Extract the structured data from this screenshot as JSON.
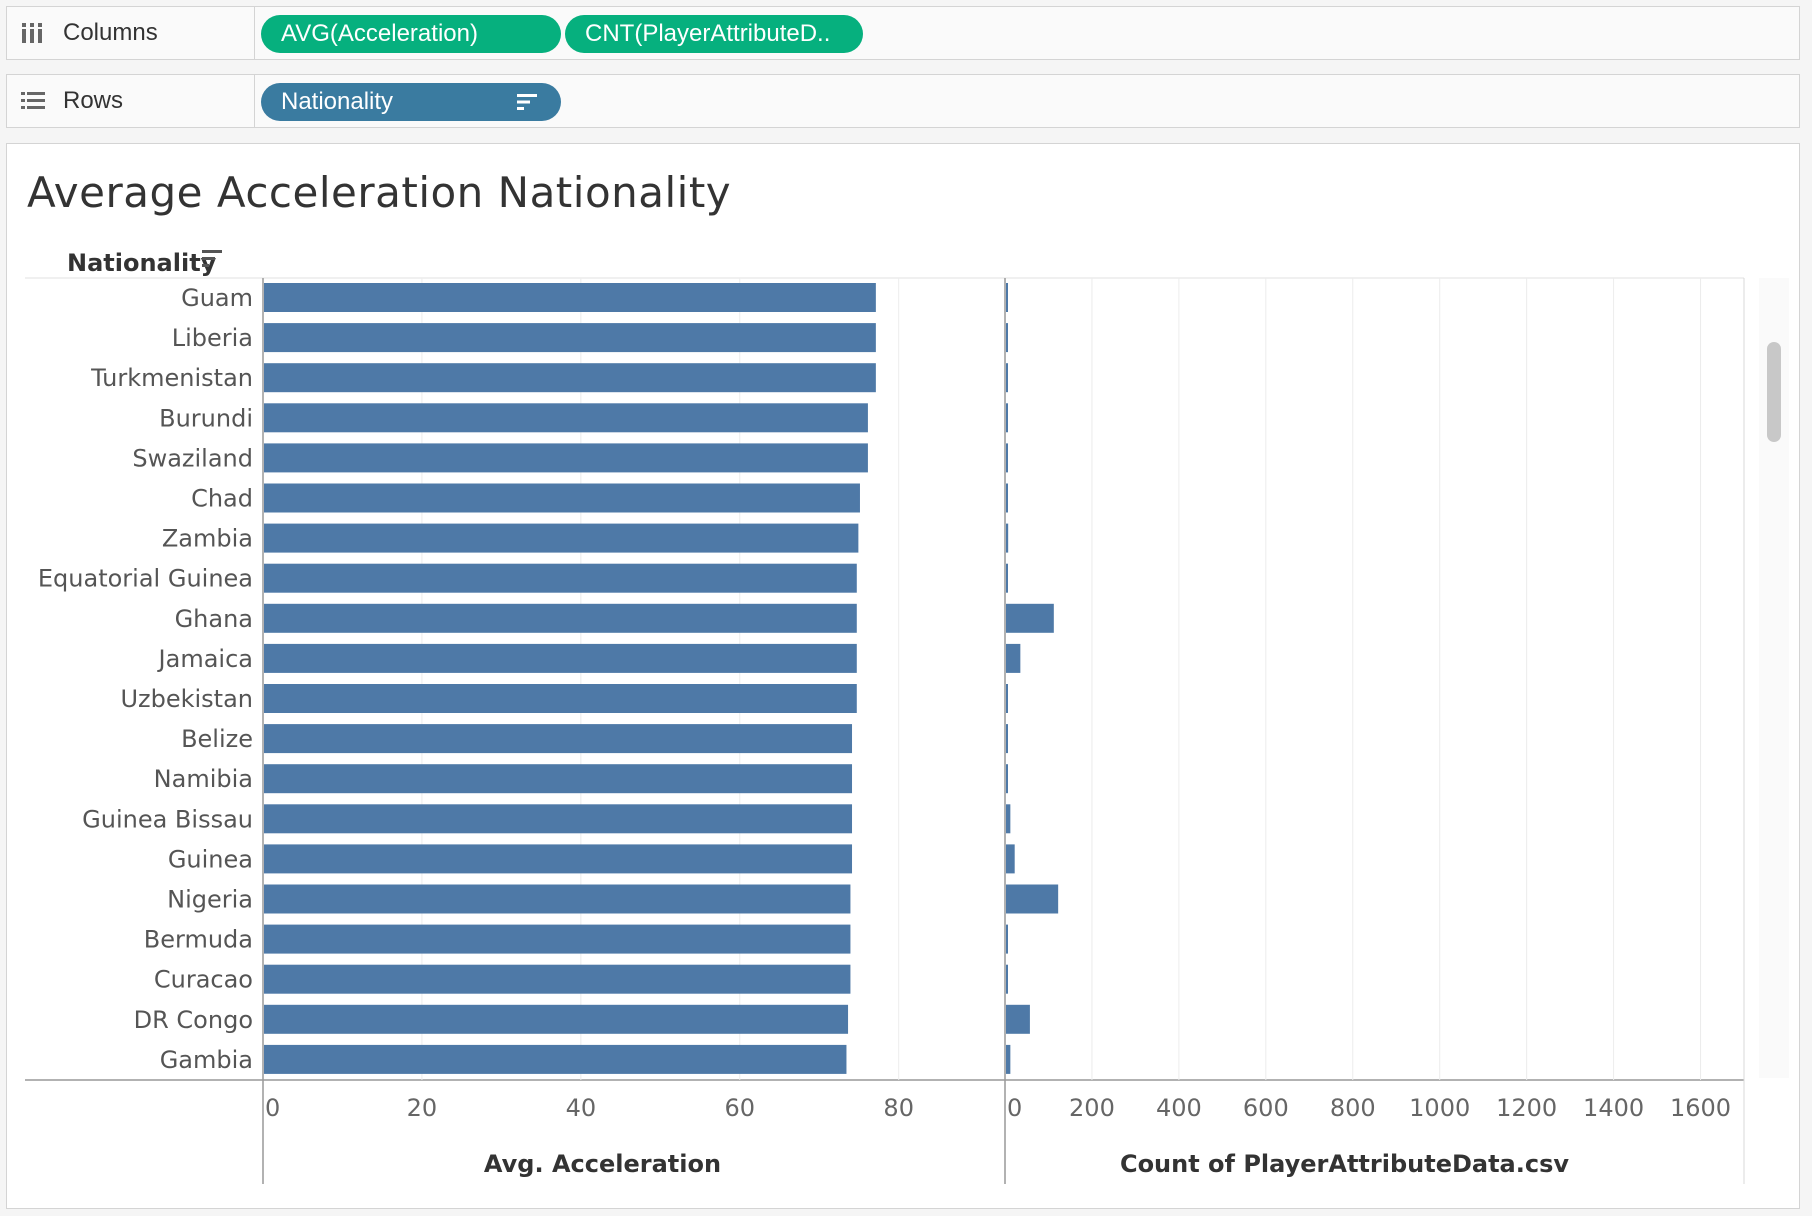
{
  "shelves": {
    "columns": {
      "label": "Columns",
      "pills": [
        "AVG(Acceleration)",
        "CNT(PlayerAttributeD.."
      ]
    },
    "rows": {
      "label": "Rows",
      "pills": [
        "Nationality"
      ]
    }
  },
  "title": "Average Acceleration Nationality",
  "row_header": "Nationality",
  "colors": {
    "bar": "#4e79a7",
    "pill_green": "#06b07e",
    "pill_blue": "#3a7ba0"
  },
  "chart_data": [
    {
      "type": "bar",
      "orientation": "horizontal",
      "categories": [
        "Guam",
        "Liberia",
        "Turkmenistan",
        "Burundi",
        "Swaziland",
        "Chad",
        "Zambia",
        "Equatorial Guinea",
        "Ghana",
        "Jamaica",
        "Uzbekistan",
        "Belize",
        "Namibia",
        "Guinea Bissau",
        "Guinea",
        "Nigeria",
        "Bermuda",
        "Curacao",
        "DR Congo",
        "Gambia"
      ],
      "values": [
        77,
        77,
        77,
        76,
        76,
        75,
        74.8,
        74.6,
        74.6,
        74.6,
        74.6,
        74,
        74,
        74,
        74,
        73.8,
        73.8,
        73.8,
        73.5,
        73.3
      ],
      "xlabel": "Avg. Acceleration",
      "xticks": [
        0,
        20,
        40,
        60,
        80
      ],
      "xlim": [
        0,
        93
      ]
    },
    {
      "type": "bar",
      "orientation": "horizontal",
      "categories": [
        "Guam",
        "Liberia",
        "Turkmenistan",
        "Burundi",
        "Swaziland",
        "Chad",
        "Zambia",
        "Equatorial Guinea",
        "Ghana",
        "Jamaica",
        "Uzbekistan",
        "Belize",
        "Namibia",
        "Guinea Bissau",
        "Guinea",
        "Nigeria",
        "Bermuda",
        "Curacao",
        "DR Congo",
        "Gambia"
      ],
      "values": [
        1,
        1,
        1,
        1,
        1,
        1,
        5,
        1,
        110,
        33,
        1,
        1,
        1,
        10,
        20,
        120,
        1,
        4,
        55,
        10
      ],
      "xlabel": "Count of PlayerAttributeData.csv",
      "xticks": [
        0,
        200,
        400,
        600,
        800,
        1000,
        1200,
        1400,
        1600
      ],
      "xlim": [
        0,
        1700
      ]
    }
  ]
}
